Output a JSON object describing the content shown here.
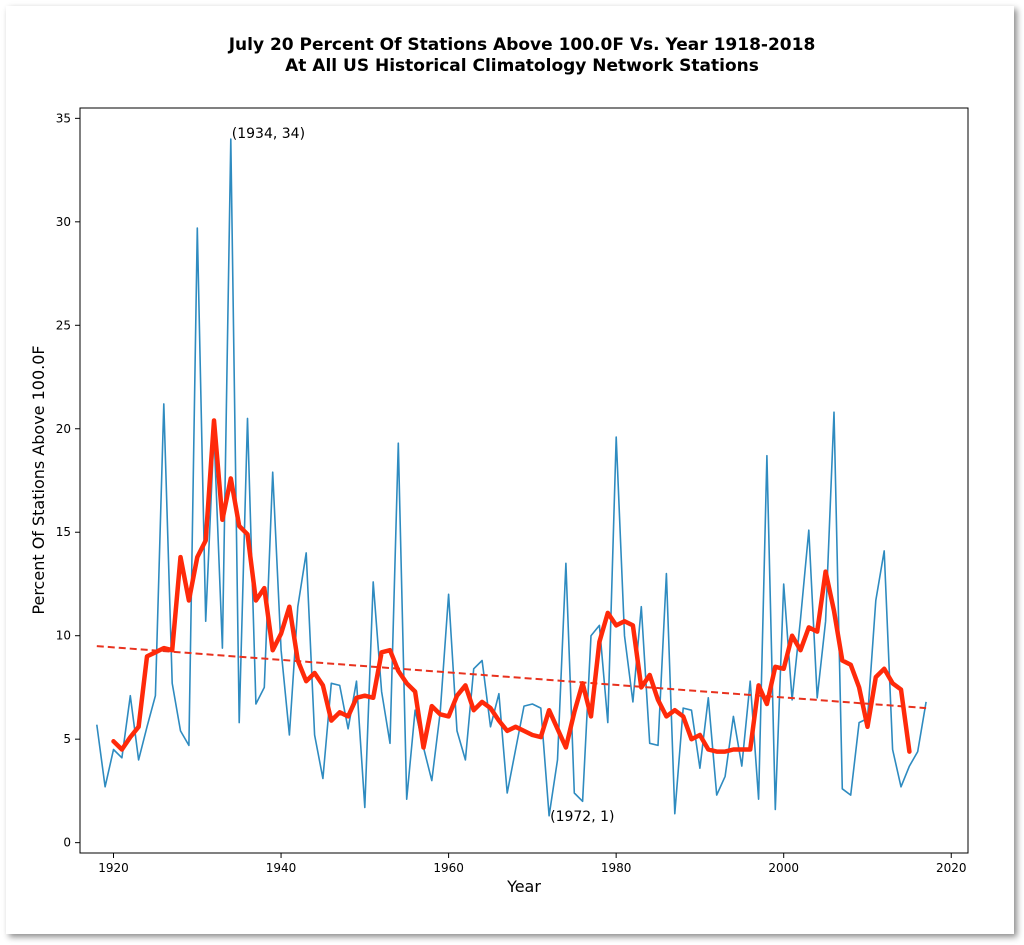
{
  "chart_data": {
    "type": "line",
    "title": "July 20 Percent Of Stations Above 100.0F Vs. Year 1918-2018",
    "subtitle": "At All US Historical Climatology Network Stations",
    "xlabel": "Year",
    "ylabel": "Percent Of Stations Above 100.0F",
    "xlim": [
      1916,
      2022
    ],
    "ylim": [
      -0.5,
      35.5
    ],
    "xticks": [
      1920,
      1940,
      1960,
      1980,
      2000,
      2020
    ],
    "yticks": [
      0,
      5,
      10,
      15,
      20,
      25,
      30,
      35
    ],
    "grid": false,
    "legend": "none",
    "colors": {
      "annual": "#2e8bc0",
      "moving_average": "#ff2a0a",
      "trend": "#e8321e"
    },
    "series": [
      {
        "style": "thin-line",
        "x": [
          1918,
          1919,
          1920,
          1921,
          1922,
          1923,
          1924,
          1925,
          1926,
          1927,
          1928,
          1929,
          1930,
          1931,
          1932,
          1933,
          1934,
          1935,
          1936,
          1937,
          1938,
          1939,
          1940,
          1941,
          1942,
          1943,
          1944,
          1945,
          1946,
          1947,
          1948,
          1949,
          1950,
          1951,
          1952,
          1953,
          1954,
          1955,
          1956,
          1957,
          1958,
          1959,
          1960,
          1961,
          1962,
          1963,
          1964,
          1965,
          1966,
          1967,
          1968,
          1969,
          1970,
          1971,
          1972,
          1973,
          1974,
          1975,
          1976,
          1977,
          1978,
          1979,
          1980,
          1981,
          1982,
          1983,
          1984,
          1985,
          1986,
          1987,
          1988,
          1989,
          1990,
          1991,
          1992,
          1993,
          1994,
          1995,
          1996,
          1997,
          1998,
          1999,
          2000,
          2001,
          2002,
          2003,
          2004,
          2005,
          2006,
          2007,
          2008,
          2009,
          2010,
          2011,
          2012,
          2013,
          2014,
          2015,
          2016,
          2017
        ],
        "values": [
          5.7,
          2.7,
          4.5,
          4.1,
          7.1,
          4.0,
          5.6,
          7.1,
          21.2,
          7.7,
          5.4,
          4.7,
          29.7,
          10.7,
          19.8,
          9.4,
          34.0,
          5.8,
          20.5,
          6.7,
          7.5,
          17.9,
          9.3,
          5.2,
          11.4,
          14.0,
          5.2,
          3.1,
          7.7,
          7.6,
          5.5,
          7.8,
          1.7,
          12.6,
          7.3,
          4.8,
          19.3,
          2.1,
          6.4,
          4.6,
          3.0,
          6.3,
          12.0,
          5.4,
          4.0,
          8.4,
          8.8,
          5.6,
          7.2,
          2.4,
          4.5,
          6.6,
          6.7,
          6.5,
          1.3,
          4.0,
          13.5,
          2.4,
          2.0,
          10.0,
          10.5,
          5.8,
          19.6,
          10.0,
          6.8,
          11.4,
          4.8,
          4.7,
          13.0,
          1.4,
          6.5,
          6.4,
          3.6,
          7.0,
          2.3,
          3.2,
          6.1,
          3.7,
          7.8,
          2.1,
          18.7,
          1.6,
          12.5,
          6.9,
          10.8,
          15.1,
          7.0,
          10.7,
          20.8,
          2.6,
          2.3,
          5.8,
          6.0,
          11.7,
          14.1,
          4.5,
          2.7,
          3.7,
          4.4,
          6.8
        ]
      },
      {
        "style": "thick-moving-average",
        "x": [
          1920,
          1921,
          1922,
          1923,
          1924,
          1925,
          1926,
          1927,
          1928,
          1929,
          1930,
          1931,
          1932,
          1933,
          1934,
          1935,
          1936,
          1937,
          1938,
          1939,
          1940,
          1941,
          1942,
          1943,
          1944,
          1945,
          1946,
          1947,
          1948,
          1949,
          1950,
          1951,
          1952,
          1953,
          1954,
          1955,
          1956,
          1957,
          1958,
          1959,
          1960,
          1961,
          1962,
          1963,
          1964,
          1965,
          1966,
          1967,
          1968,
          1969,
          1970,
          1971,
          1972,
          1973,
          1974,
          1975,
          1976,
          1977,
          1978,
          1979,
          1980,
          1981,
          1982,
          1983,
          1984,
          1985,
          1986,
          1987,
          1988,
          1989,
          1990,
          1991,
          1992,
          1993,
          1994,
          1995,
          1996,
          1997,
          1998,
          1999,
          2000,
          2001,
          2002,
          2003,
          2004,
          2005,
          2006,
          2007,
          2008,
          2009,
          2010,
          2011,
          2012,
          2013,
          2014,
          2015
        ],
        "values": [
          4.9,
          4.5,
          5.1,
          5.6,
          9.0,
          9.2,
          9.4,
          9.3,
          13.8,
          11.7,
          13.8,
          14.6,
          20.4,
          15.6,
          17.6,
          15.3,
          14.9,
          11.7,
          12.3,
          9.3,
          10.1,
          11.4,
          8.8,
          7.8,
          8.2,
          7.6,
          5.9,
          6.3,
          6.1,
          7.0,
          7.1,
          7.0,
          9.2,
          9.3,
          8.3,
          7.7,
          7.3,
          4.6,
          6.6,
          6.2,
          6.1,
          7.1,
          7.6,
          6.4,
          6.8,
          6.5,
          5.9,
          5.4,
          5.6,
          5.4,
          5.2,
          5.1,
          6.4,
          5.5,
          4.6,
          6.3,
          7.7,
          6.1,
          9.7,
          11.1,
          10.5,
          10.7,
          10.5,
          7.5,
          8.1,
          6.9,
          6.1,
          6.4,
          6.1,
          5.0,
          5.2,
          4.5,
          4.4,
          4.4,
          4.5,
          4.5,
          4.5,
          7.6,
          6.7,
          8.5,
          8.4,
          10.0,
          9.3,
          10.4,
          10.2,
          13.1,
          11.2,
          8.8,
          8.6,
          7.5,
          5.6,
          8.0,
          8.4,
          7.7,
          7.4,
          4.4
        ]
      },
      {
        "style": "dashed-trend",
        "x": [
          1918,
          2017
        ],
        "values": [
          9.5,
          6.5
        ]
      }
    ],
    "annotations": [
      {
        "text": "(1934, 34)",
        "x": 1934,
        "y": 34
      },
      {
        "text": "(1972, 1)",
        "x": 1972,
        "y": 1
      }
    ]
  }
}
